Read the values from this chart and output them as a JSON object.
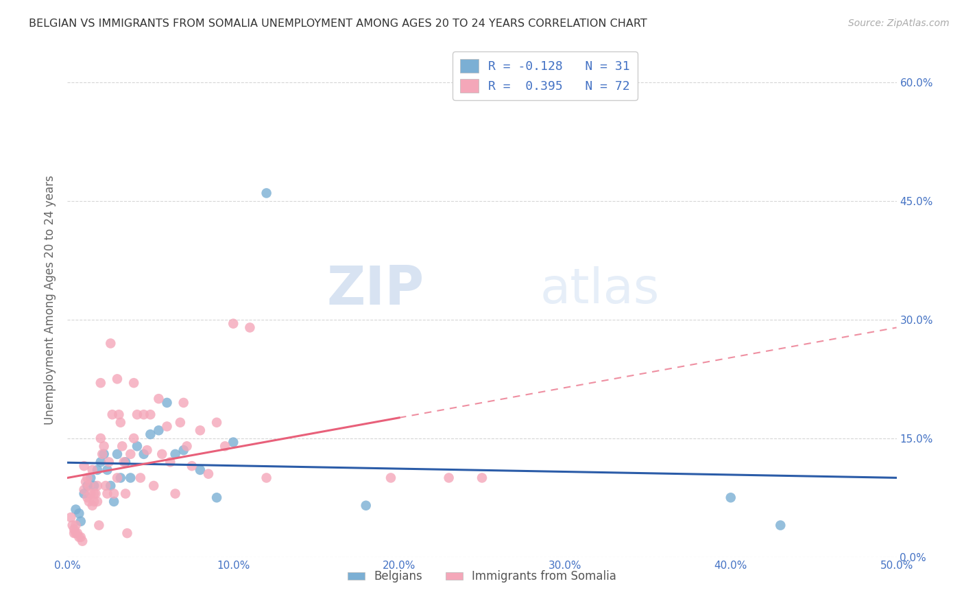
{
  "title": "BELGIAN VS IMMIGRANTS FROM SOMALIA UNEMPLOYMENT AMONG AGES 20 TO 24 YEARS CORRELATION CHART",
  "source": "Source: ZipAtlas.com",
  "ylabel": "Unemployment Among Ages 20 to 24 years",
  "xlim": [
    0.0,
    0.5
  ],
  "ylim": [
    0.0,
    0.65
  ],
  "xticks": [
    0.0,
    0.1,
    0.2,
    0.3,
    0.4,
    0.5
  ],
  "xtick_labels": [
    "0.0%",
    "10.0%",
    "20.0%",
    "30.0%",
    "40.0%",
    "50.0%"
  ],
  "yticks": [
    0.0,
    0.15,
    0.3,
    0.45,
    0.6
  ],
  "left_ytick_labels": [
    "",
    "",
    "",
    "",
    ""
  ],
  "right_ytick_labels": [
    "0.0%",
    "15.0%",
    "30.0%",
    "45.0%",
    "60.0%"
  ],
  "blue_color": "#7bafd4",
  "pink_color": "#f4a7b9",
  "blue_line_color": "#2b5ca8",
  "pink_line_color": "#e8607a",
  "legend_blue_label": "R = -0.128   N = 31",
  "legend_pink_label": "R =  0.395   N = 72",
  "legend1_label": "Belgians",
  "legend2_label": "Immigrants from Somalia",
  "watermark_zip": "ZIP",
  "watermark_atlas": "atlas",
  "blue_x": [
    0.005,
    0.007,
    0.008,
    0.01,
    0.012,
    0.014,
    0.016,
    0.018,
    0.02,
    0.022,
    0.024,
    0.026,
    0.028,
    0.03,
    0.032,
    0.035,
    0.038,
    0.042,
    0.046,
    0.05,
    0.055,
    0.06,
    0.065,
    0.07,
    0.08,
    0.09,
    0.1,
    0.12,
    0.18,
    0.4,
    0.43
  ],
  "blue_y": [
    0.06,
    0.055,
    0.045,
    0.08,
    0.09,
    0.1,
    0.09,
    0.11,
    0.12,
    0.13,
    0.11,
    0.09,
    0.07,
    0.13,
    0.1,
    0.12,
    0.1,
    0.14,
    0.13,
    0.155,
    0.16,
    0.195,
    0.13,
    0.135,
    0.11,
    0.075,
    0.145,
    0.46,
    0.065,
    0.075,
    0.04
  ],
  "pink_x": [
    0.002,
    0.003,
    0.004,
    0.004,
    0.005,
    0.005,
    0.006,
    0.007,
    0.008,
    0.009,
    0.01,
    0.01,
    0.011,
    0.012,
    0.012,
    0.013,
    0.013,
    0.014,
    0.015,
    0.015,
    0.016,
    0.016,
    0.017,
    0.018,
    0.018,
    0.019,
    0.02,
    0.02,
    0.021,
    0.022,
    0.023,
    0.024,
    0.025,
    0.026,
    0.027,
    0.028,
    0.03,
    0.03,
    0.031,
    0.032,
    0.033,
    0.034,
    0.035,
    0.036,
    0.038,
    0.04,
    0.04,
    0.042,
    0.044,
    0.046,
    0.048,
    0.05,
    0.052,
    0.055,
    0.057,
    0.06,
    0.062,
    0.065,
    0.068,
    0.07,
    0.072,
    0.075,
    0.08,
    0.085,
    0.09,
    0.095,
    0.1,
    0.11,
    0.12,
    0.195,
    0.23,
    0.25
  ],
  "pink_y": [
    0.05,
    0.04,
    0.035,
    0.03,
    0.04,
    0.03,
    0.03,
    0.025,
    0.025,
    0.02,
    0.115,
    0.085,
    0.095,
    0.1,
    0.075,
    0.09,
    0.07,
    0.08,
    0.11,
    0.065,
    0.07,
    0.08,
    0.08,
    0.09,
    0.07,
    0.04,
    0.22,
    0.15,
    0.13,
    0.14,
    0.09,
    0.08,
    0.12,
    0.27,
    0.18,
    0.08,
    0.225,
    0.1,
    0.18,
    0.17,
    0.14,
    0.12,
    0.08,
    0.03,
    0.13,
    0.22,
    0.15,
    0.18,
    0.1,
    0.18,
    0.135,
    0.18,
    0.09,
    0.2,
    0.13,
    0.165,
    0.12,
    0.08,
    0.17,
    0.195,
    0.14,
    0.115,
    0.16,
    0.105,
    0.17,
    0.14,
    0.295,
    0.29,
    0.1,
    0.1,
    0.1,
    0.1
  ],
  "background_color": "#ffffff",
  "grid_color": "#cccccc",
  "title_color": "#333333",
  "axis_color": "#4472c4"
}
